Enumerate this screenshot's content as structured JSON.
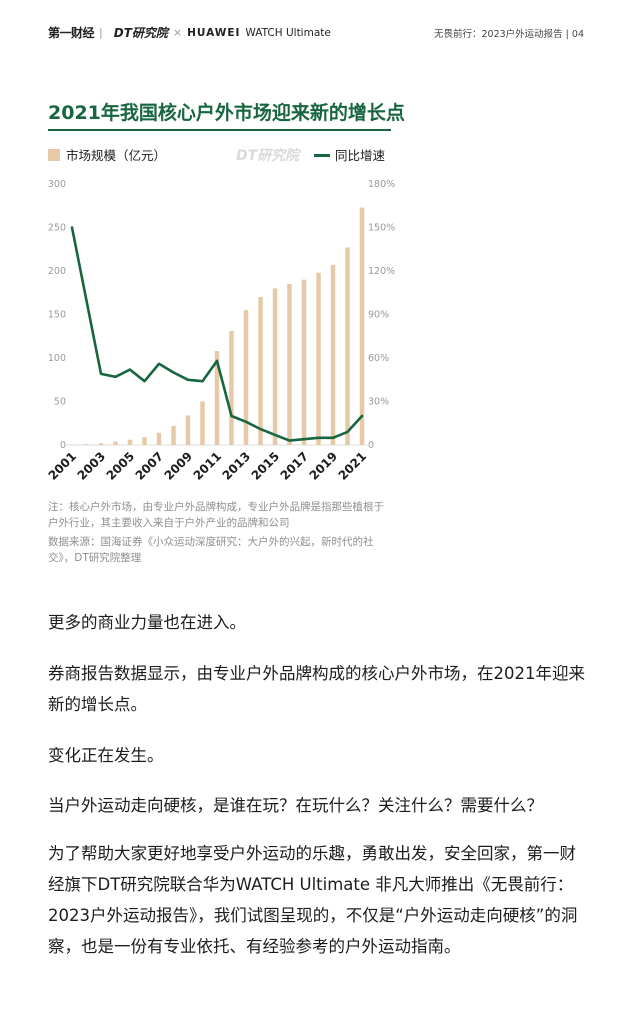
{
  "header": {
    "brand_cbn": "第一财经",
    "brand_dt": "DT研究院",
    "brand_x": "×",
    "brand_huawei": "HUAWEI",
    "brand_watch": "WATCH Ultimate",
    "page_info": "无畏前行：2023户外运动报告 | 04"
  },
  "chart_title": "2021年我国核心户外市场迎来新的增长点",
  "legend": {
    "bar_label": "市场规模（亿元）",
    "line_label": "同比增速",
    "watermark": "DT研究院"
  },
  "colors": {
    "bar": "#e6c9a6",
    "line": "#17663f",
    "title": "#17663f"
  },
  "chart_data": {
    "type": "bar+line",
    "title": "2021年我国核心户外市场迎来新的增长点",
    "categories": [
      "2001",
      "2002",
      "2003",
      "2004",
      "2005",
      "2006",
      "2007",
      "2008",
      "2009",
      "2010",
      "2011",
      "2012",
      "2013",
      "2014",
      "2015",
      "2016",
      "2017",
      "2018",
      "2019",
      "2020",
      "2021"
    ],
    "x_tick_labels": [
      "2001",
      "2003",
      "2005",
      "2007",
      "2009",
      "2011",
      "2013",
      "2015",
      "2017",
      "2019",
      "2021"
    ],
    "series": [
      {
        "name": "市场规模（亿元）",
        "type": "bar",
        "axis": "left",
        "values": [
          0.5,
          1,
          2,
          4,
          6,
          9,
          14,
          22,
          34,
          50,
          108,
          131,
          155,
          170,
          180,
          185,
          190,
          198,
          207,
          227,
          273
        ]
      },
      {
        "name": "同比增速",
        "type": "line",
        "axis": "right",
        "values": [
          150,
          null,
          49,
          47,
          52,
          44,
          56,
          50,
          45,
          44,
          58,
          20,
          16,
          11,
          7,
          3,
          4,
          5,
          5,
          9,
          20
        ]
      }
    ],
    "ylim_left": [
      0,
      300
    ],
    "yticks_left": [
      "0",
      "50",
      "100",
      "150",
      "200",
      "250",
      "300"
    ],
    "ylim_right": [
      0,
      180
    ],
    "yticks_right": [
      "0",
      "30%",
      "60%",
      "90%",
      "120%",
      "150%",
      "180%"
    ],
    "grid": false,
    "legend_position": "top"
  },
  "notes": {
    "note1": "注：核心户外市场，由专业户外品牌构成，专业户外品牌是指那些植根于户外行业，其主要收入来自于户外产业的品牌和公司",
    "note2": "数据来源：国海证券《小众运动深度研究：大户外的兴起，新时代的社交》，DT研究院整理"
  },
  "body": {
    "p1": "更多的商业力量也在进入。",
    "p2": "券商报告数据显示，由专业户外品牌构成的核心户外市场，在2021年迎来新的增长点。",
    "p3": "变化正在发生。",
    "p4": "当户外运动走向硬核，是谁在玩？在玩什么？关注什么？需要什么？",
    "p5": "为了帮助大家更好地享受户外运动的乐趣，勇敢出发，安全回家，第一财经旗下DT研究院联合华为WATCH Ultimate 非凡大师推出《无畏前行：2023户外运动报告》，我们试图呈现的，不仅是“户外运动走向硬核”的洞察，也是一份有专业依托、有经验参考的户外运动指南。"
  }
}
